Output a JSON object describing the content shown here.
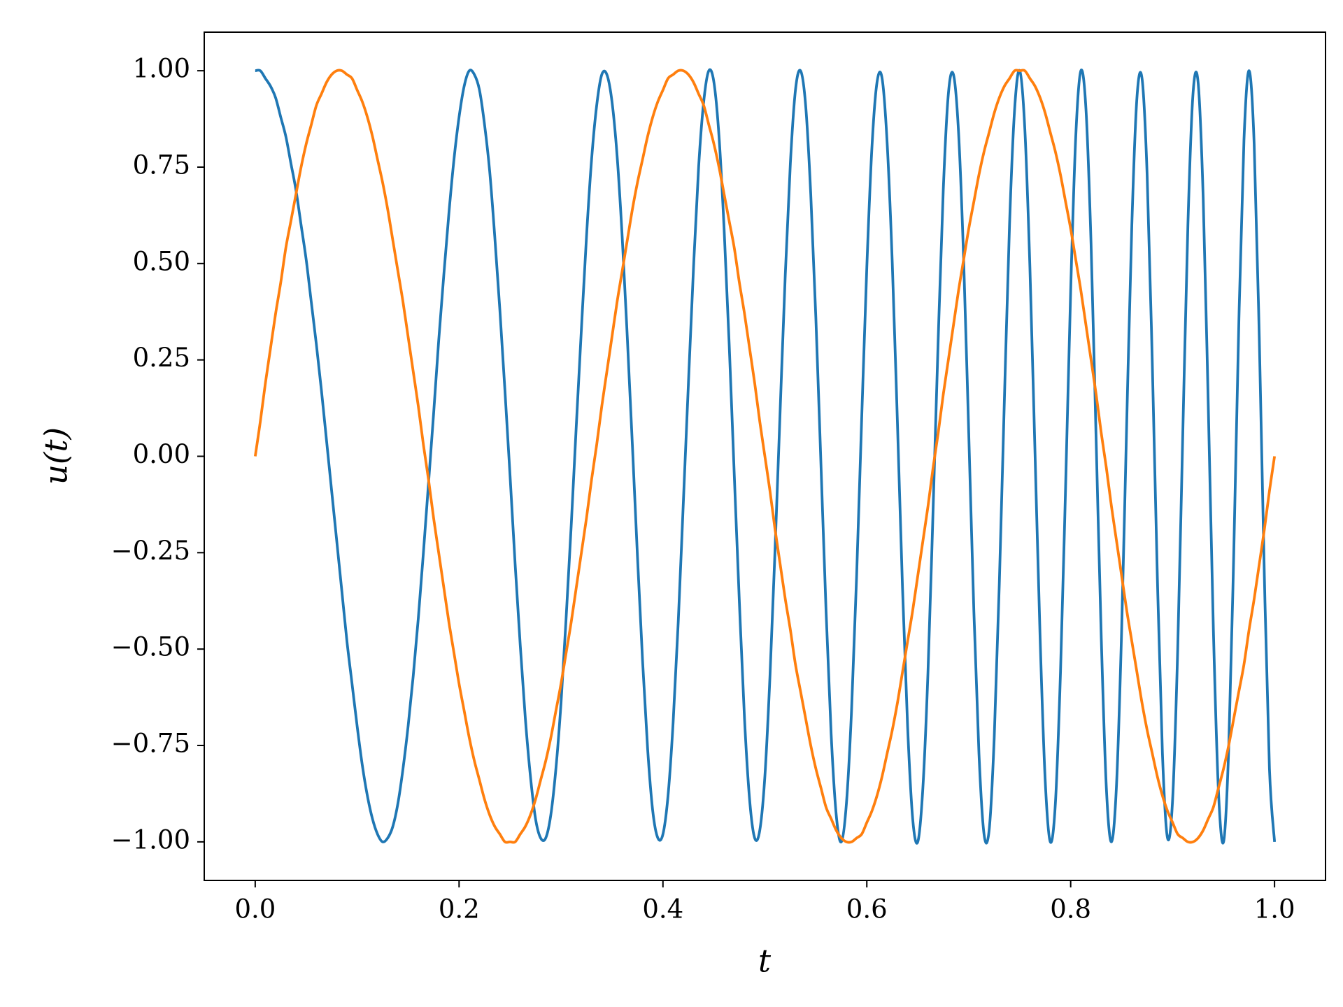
{
  "chart_data": {
    "type": "line",
    "xlabel": "t",
    "ylabel": "u(t)",
    "xlim": [
      -0.05,
      1.05
    ],
    "ylim": [
      -1.1,
      1.1
    ],
    "xticks": [
      {
        "value": 0,
        "label": "0.0"
      },
      {
        "value": 0.2,
        "label": "0.2"
      },
      {
        "value": 0.4,
        "label": "0.4"
      },
      {
        "value": 0.6,
        "label": "0.6"
      },
      {
        "value": 0.8,
        "label": "0.8"
      },
      {
        "value": 1,
        "label": "1.0"
      }
    ],
    "yticks": [
      {
        "value": -1,
        "label": "−1.00"
      },
      {
        "value": -0.75,
        "label": "−0.75"
      },
      {
        "value": -0.5,
        "label": "−0.50"
      },
      {
        "value": -0.25,
        "label": "−0.25"
      },
      {
        "value": 0,
        "label": "0.00"
      },
      {
        "value": 0.25,
        "label": "0.25"
      },
      {
        "value": 0.5,
        "label": "0.50"
      },
      {
        "value": 0.75,
        "label": "0.75"
      },
      {
        "value": 1,
        "label": "1.00"
      }
    ],
    "grid": false,
    "x": [
      0,
      0.005,
      0.01,
      0.015,
      0.02,
      0.025,
      0.03,
      0.035,
      0.04,
      0.045,
      0.05,
      0.055,
      0.06,
      0.065,
      0.07,
      0.075,
      0.08,
      0.085,
      0.09,
      0.095,
      0.1,
      0.105,
      0.11,
      0.115,
      0.12,
      0.125,
      0.13,
      0.135,
      0.14,
      0.145,
      0.15,
      0.155,
      0.16,
      0.165,
      0.17,
      0.175,
      0.18,
      0.185,
      0.19,
      0.195,
      0.2,
      0.205,
      0.21,
      0.215,
      0.22,
      0.225,
      0.23,
      0.235,
      0.24,
      0.245,
      0.25,
      0.255,
      0.26,
      0.265,
      0.27,
      0.275,
      0.28,
      0.285,
      0.29,
      0.295,
      0.3,
      0.305,
      0.31,
      0.315,
      0.32,
      0.325,
      0.33,
      0.335,
      0.34,
      0.345,
      0.35,
      0.355,
      0.36,
      0.365,
      0.37,
      0.375,
      0.38,
      0.385,
      0.39,
      0.395,
      0.4,
      0.405,
      0.41,
      0.415,
      0.42,
      0.425,
      0.43,
      0.435,
      0.44,
      0.445,
      0.45,
      0.455,
      0.46,
      0.465,
      0.47,
      0.475,
      0.48,
      0.485,
      0.49,
      0.495,
      0.5,
      0.505,
      0.51,
      0.515,
      0.52,
      0.525,
      0.53,
      0.535,
      0.54,
      0.545,
      0.55,
      0.555,
      0.56,
      0.565,
      0.57,
      0.575,
      0.58,
      0.585,
      0.59,
      0.595,
      0.6,
      0.605,
      0.61,
      0.615,
      0.62,
      0.625,
      0.63,
      0.635,
      0.64,
      0.645,
      0.65,
      0.655,
      0.66,
      0.665,
      0.67,
      0.675,
      0.68,
      0.685,
      0.69,
      0.695,
      0.7,
      0.705,
      0.71,
      0.715,
      0.72,
      0.725,
      0.73,
      0.735,
      0.74,
      0.745,
      0.75,
      0.755,
      0.76,
      0.765,
      0.77,
      0.775,
      0.78,
      0.785,
      0.79,
      0.795,
      0.8,
      0.805,
      0.81,
      0.815,
      0.82,
      0.825,
      0.83,
      0.835,
      0.84,
      0.845,
      0.85,
      0.855,
      0.86,
      0.865,
      0.87,
      0.875,
      0.88,
      0.885,
      0.89,
      0.895,
      0.9,
      0.905,
      0.91,
      0.915,
      0.92,
      0.925,
      0.93,
      0.935,
      0.94,
      0.945,
      0.95,
      0.955,
      0.96,
      0.965,
      0.97,
      0.975,
      0.98,
      0.985,
      0.99,
      0.995,
      1
    ],
    "series": [
      {
        "color": "#1f77b4",
        "values": [
          1,
          1,
          0.98,
          0.96,
          0.93,
          0.88,
          0.83,
          0.76,
          0.69,
          0.6,
          0.51,
          0.4,
          0.29,
          0.17,
          0.04,
          -0.09,
          -0.22,
          -0.35,
          -0.48,
          -0.59,
          -0.7,
          -0.8,
          -0.88,
          -0.94,
          -0.98,
          -1,
          -0.99,
          -0.96,
          -0.9,
          -0.81,
          -0.7,
          -0.57,
          -0.42,
          -0.25,
          -0.07,
          0.11,
          0.3,
          0.47,
          0.63,
          0.77,
          0.88,
          0.96,
          1,
          0.99,
          0.95,
          0.86,
          0.74,
          0.57,
          0.38,
          0.17,
          -0.05,
          -0.28,
          -0.49,
          -0.68,
          -0.83,
          -0.94,
          -0.99,
          -0.99,
          -0.93,
          -0.81,
          -0.64,
          -0.42,
          -0.18,
          0.08,
          0.33,
          0.57,
          0.77,
          0.91,
          0.99,
          0.99,
          0.92,
          0.78,
          0.57,
          0.31,
          0.03,
          -0.26,
          -0.53,
          -0.76,
          -0.92,
          -0.99,
          -0.98,
          -0.88,
          -0.69,
          -0.43,
          -0.12,
          0.19,
          0.49,
          0.75,
          0.92,
          1,
          0.97,
          0.83,
          0.59,
          0.29,
          -0.05,
          -0.38,
          -0.68,
          -0.89,
          -0.99,
          -0.97,
          -0.83,
          -0.57,
          -0.24,
          0.12,
          0.47,
          0.76,
          0.95,
          1,
          0.91,
          0.68,
          0.36,
          -0.02,
          -0.4,
          -0.72,
          -0.93,
          -1,
          -0.9,
          -0.66,
          -0.31,
          0.1,
          0.49,
          0.8,
          0.97,
          0.98,
          0.81,
          0.5,
          0.09,
          -0.34,
          -0.7,
          -0.94,
          -1,
          -0.86,
          -0.56,
          -0.14,
          0.3,
          0.69,
          0.94,
          0.99,
          0.84,
          0.51,
          0.06,
          -0.4,
          -0.77,
          -0.98,
          -0.97,
          -0.73,
          -0.33,
          0.15,
          0.6,
          0.9,
          1,
          0.85,
          0.49,
          0.01,
          -0.47,
          -0.84,
          -1,
          -0.9,
          -0.56,
          -0.08,
          0.43,
          0.83,
          1,
          0.9,
          0.55,
          0.04,
          -0.47,
          -0.86,
          -1,
          -0.85,
          -0.45,
          0.09,
          0.6,
          0.93,
          0.98,
          0.73,
          0.25,
          -0.31,
          -0.77,
          -0.99,
          -0.89,
          -0.5,
          0.06,
          0.6,
          0.94,
          0.97,
          0.67,
          0.13,
          -0.45,
          -0.87,
          -1,
          -0.76,
          -0.25,
          0.35,
          0.82,
          1,
          0.81,
          0.31,
          -0.31,
          -0.81,
          -1
        ]
      },
      {
        "color": "#ff7f0e",
        "values": [
          0,
          0.09,
          0.19,
          0.28,
          0.37,
          0.45,
          0.54,
          0.61,
          0.68,
          0.75,
          0.81,
          0.86,
          0.91,
          0.94,
          0.97,
          0.99,
          1,
          1,
          0.99,
          0.98,
          0.95,
          0.92,
          0.88,
          0.83,
          0.77,
          0.71,
          0.64,
          0.56,
          0.48,
          0.4,
          0.31,
          0.22,
          0.13,
          0.03,
          -0.06,
          -0.16,
          -0.25,
          -0.34,
          -0.43,
          -0.51,
          -0.59,
          -0.66,
          -0.73,
          -0.79,
          -0.84,
          -0.89,
          -0.93,
          -0.96,
          -0.98,
          -1,
          -1,
          -1,
          -0.98,
          -0.96,
          -0.93,
          -0.89,
          -0.84,
          -0.79,
          -0.73,
          -0.66,
          -0.59,
          -0.51,
          -0.43,
          -0.34,
          -0.25,
          -0.16,
          -0.06,
          0.03,
          0.13,
          0.22,
          0.31,
          0.4,
          0.48,
          0.56,
          0.64,
          0.71,
          0.77,
          0.83,
          0.88,
          0.92,
          0.95,
          0.98,
          0.99,
          1,
          1,
          0.99,
          0.97,
          0.94,
          0.91,
          0.86,
          0.81,
          0.75,
          0.68,
          0.61,
          0.54,
          0.45,
          0.37,
          0.28,
          0.19,
          0.09,
          0,
          -0.09,
          -0.19,
          -0.28,
          -0.37,
          -0.45,
          -0.54,
          -0.61,
          -0.68,
          -0.75,
          -0.81,
          -0.86,
          -0.91,
          -0.94,
          -0.97,
          -0.99,
          -1,
          -1,
          -0.99,
          -0.98,
          -0.95,
          -0.92,
          -0.88,
          -0.83,
          -0.77,
          -0.71,
          -0.64,
          -0.56,
          -0.48,
          -0.4,
          -0.31,
          -0.22,
          -0.13,
          -0.03,
          0.06,
          0.16,
          0.25,
          0.34,
          0.43,
          0.51,
          0.59,
          0.66,
          0.73,
          0.79,
          0.84,
          0.89,
          0.93,
          0.96,
          0.98,
          1,
          1,
          1,
          0.98,
          0.96,
          0.93,
          0.89,
          0.84,
          0.79,
          0.73,
          0.66,
          0.59,
          0.51,
          0.43,
          0.34,
          0.25,
          0.16,
          0.06,
          -0.03,
          -0.13,
          -0.22,
          -0.31,
          -0.4,
          -0.48,
          -0.56,
          -0.64,
          -0.71,
          -0.77,
          -0.83,
          -0.88,
          -0.92,
          -0.95,
          -0.98,
          -0.99,
          -1,
          -1,
          -0.99,
          -0.97,
          -0.94,
          -0.91,
          -0.86,
          -0.81,
          -0.75,
          -0.68,
          -0.61,
          -0.54,
          -0.45,
          -0.37,
          -0.28,
          -0.19,
          -0.09,
          0
        ]
      }
    ]
  }
}
